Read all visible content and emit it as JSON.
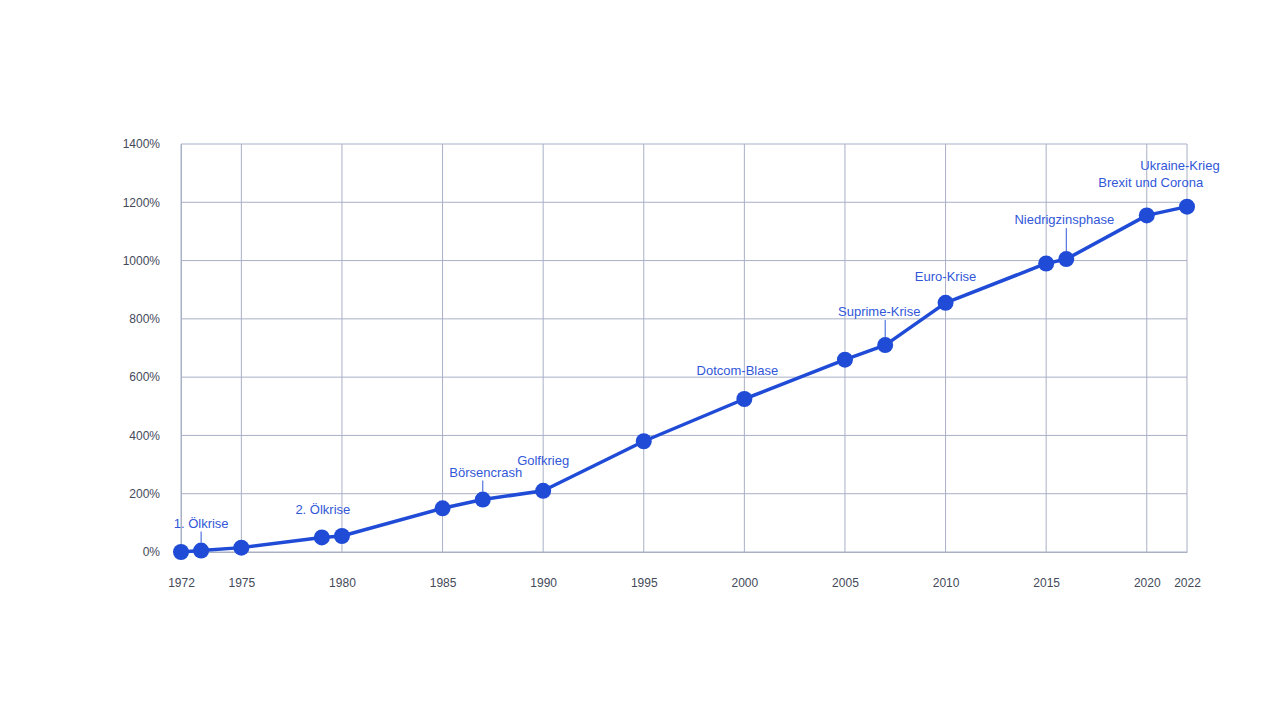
{
  "chart_data": {
    "type": "line",
    "x": [
      1972,
      1973,
      1975,
      1979,
      1980,
      1985,
      1987,
      1990,
      1995,
      2000,
      2005,
      2007,
      2010,
      2015,
      2016,
      2020,
      2022
    ],
    "values": [
      0,
      5,
      15,
      50,
      55,
      150,
      180,
      210,
      380,
      525,
      660,
      710,
      855,
      990,
      1005,
      1155,
      1185
    ],
    "color": "#1f4bd6",
    "marker": "circle",
    "line_style": "solid",
    "xlim": [
      1972,
      2022
    ],
    "xticks": [
      1972,
      1975,
      1980,
      1985,
      1990,
      1995,
      2000,
      2005,
      2010,
      2015,
      2020,
      2022
    ],
    "ylim": [
      0,
      1400
    ],
    "yticks": [
      {
        "value": 0,
        "label": "0%"
      },
      {
        "value": 200,
        "label": "200%"
      },
      {
        "value": 400,
        "label": "400%"
      },
      {
        "value": 600,
        "label": "600%"
      },
      {
        "value": 800,
        "label": "800%"
      },
      {
        "value": 1000,
        "label": "1000%"
      },
      {
        "value": 1200,
        "label": "1200%"
      },
      {
        "value": 1400,
        "label": "1400%"
      }
    ],
    "grid": true,
    "annotations": [
      {
        "text": "1. Ölkrise",
        "x": 1973
      },
      {
        "text": "2. Ölkrise",
        "x": 1979
      },
      {
        "text": "Börsencrash",
        "x": 1987
      },
      {
        "text": "Golfkrieg",
        "x": 1990
      },
      {
        "text": "Dotcom-Blase",
        "x": 2000
      },
      {
        "text": "Suprime-Krise",
        "x": 2007
      },
      {
        "text": "Euro-Krise",
        "x": 2010
      },
      {
        "text": "Niedrigzinsphase",
        "x": 2016
      },
      {
        "text": "Brexit und Corona",
        "x": 2020
      },
      {
        "text": "Ukraine-Krieg",
        "x": 2022
      }
    ]
  }
}
